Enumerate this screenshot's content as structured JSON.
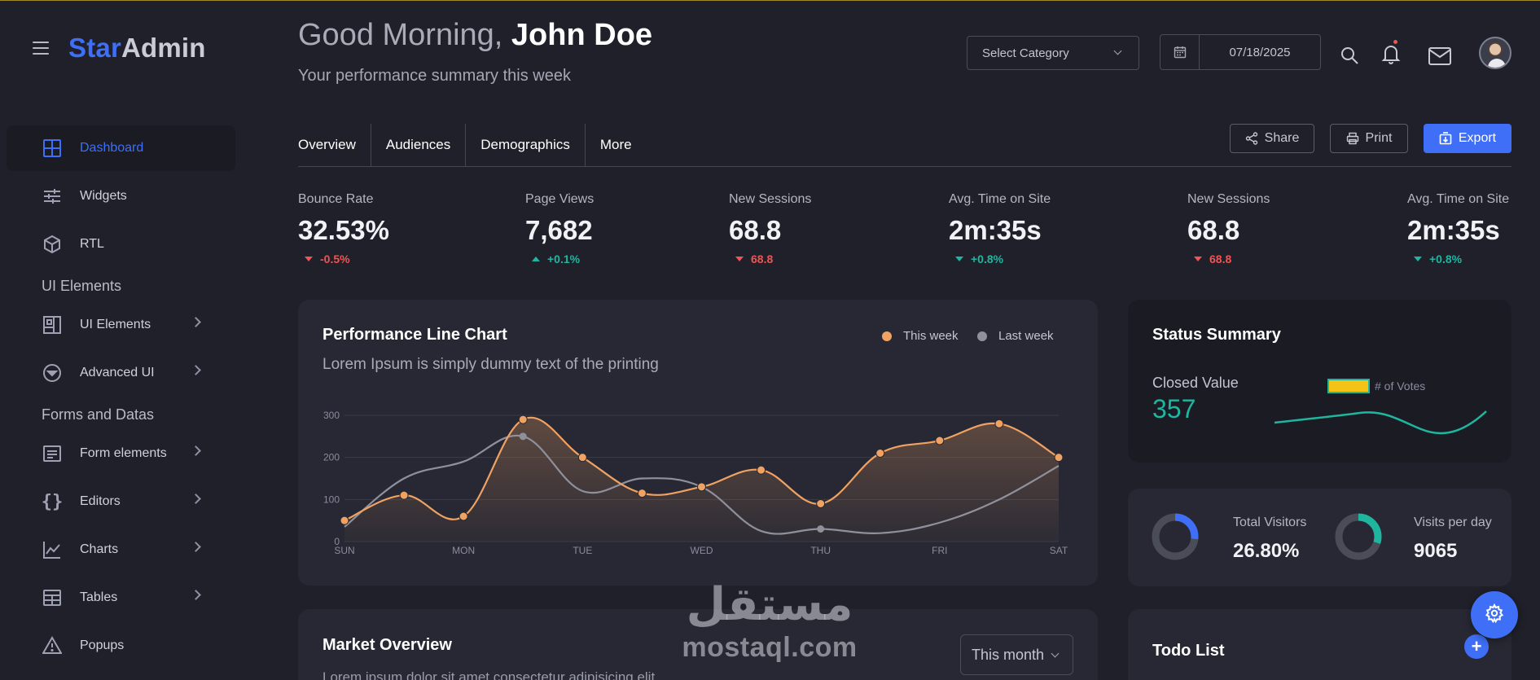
{
  "brand": {
    "part1": "Star",
    "part2": "Admin"
  },
  "sidebar": {
    "items": [
      {
        "label": "Dashboard",
        "icon": "grid-icon",
        "active": true
      },
      {
        "label": "Widgets",
        "icon": "sliders-icon"
      },
      {
        "label": "RTL",
        "icon": "cube-icon"
      },
      {
        "section": "UI Elements"
      },
      {
        "label": "UI Elements",
        "icon": "layout-icon",
        "chevron": true
      },
      {
        "label": "Advanced UI",
        "icon": "circle-chevron-icon",
        "chevron": true
      },
      {
        "section": "Forms and Datas"
      },
      {
        "label": "Form elements",
        "icon": "form-icon",
        "chevron": true
      },
      {
        "label": "Editors",
        "icon": "braces-icon",
        "chevron": true
      },
      {
        "label": "Charts",
        "icon": "chart-line-icon",
        "chevron": true
      },
      {
        "label": "Tables",
        "icon": "table-icon",
        "chevron": true
      },
      {
        "label": "Popups",
        "icon": "warning-icon"
      }
    ]
  },
  "header": {
    "greeting_prefix": "Good Morning, ",
    "user_name": "John Doe",
    "subtitle": "Your performance summary this week",
    "category_placeholder": "Select Category",
    "date": "07/18/2025"
  },
  "tabs": [
    "Overview",
    "Audiences",
    "Demographics",
    "More"
  ],
  "actions": {
    "share": "Share",
    "print": "Print",
    "export": "Export"
  },
  "kpis": [
    {
      "label": "Bounce Rate",
      "value": "32.53%",
      "delta": "-0.5%",
      "trend": "down",
      "color": "#f05454"
    },
    {
      "label": "Page Views",
      "value": "7,682",
      "delta": "+0.1%",
      "trend": "up",
      "color": "#1fb6a0"
    },
    {
      "label": "New Sessions",
      "value": "68.8",
      "delta": "68.8",
      "trend": "down",
      "color": "#f05454"
    },
    {
      "label": "Avg. Time on Site",
      "value": "2m:35s",
      "delta": "+0.8%",
      "trend": "down-green",
      "color": "#1fb6a0"
    },
    {
      "label": "New Sessions",
      "value": "68.8",
      "delta": "68.8",
      "trend": "down",
      "color": "#f05454"
    },
    {
      "label": "Avg. Time on Site",
      "value": "2m:35s",
      "delta": "+0.8%",
      "trend": "down-green",
      "color": "#1fb6a0"
    }
  ],
  "performance": {
    "title": "Performance Line Chart",
    "subtitle": "Lorem Ipsum is simply dummy text of the printing",
    "legend_this": "This week",
    "legend_last": "Last week",
    "color_this": "#f0a262",
    "color_last": "#8e909c"
  },
  "chart_data": {
    "type": "line",
    "categories": [
      "SUN",
      "MON",
      "TUE",
      "WED",
      "THU",
      "FRI",
      "SAT"
    ],
    "ylim": [
      0,
      300
    ],
    "yticks": [
      0,
      100,
      200,
      300
    ],
    "series": [
      {
        "name": "This week",
        "x": [
          0,
          0.5,
          1,
          1.5,
          2,
          2.5,
          3,
          3.5,
          4,
          4.5,
          5,
          5.5,
          6
        ],
        "values": [
          50,
          110,
          60,
          290,
          200,
          115,
          130,
          170,
          90,
          210,
          240,
          280,
          200
        ]
      },
      {
        "name": "Last week",
        "x": [
          0,
          0.5,
          1,
          1.5,
          2,
          2.5,
          3,
          3.5,
          4,
          4.5,
          5,
          5.5,
          6
        ],
        "values": [
          35,
          150,
          190,
          250,
          120,
          150,
          130,
          25,
          30,
          20,
          45,
          100,
          180
        ],
        "marked": [
          3,
          8
        ]
      }
    ]
  },
  "status_summary": {
    "title": "Status Summary",
    "closed_label": "Closed Value",
    "closed_value": "357",
    "votes_legend": "# of Votes"
  },
  "visitors": {
    "total_label": "Total Visitors",
    "total_value": "26.80%",
    "total_fraction": 0.268,
    "perday_label": "Visits per day",
    "perday_value": "9065",
    "perday_fraction": 0.3
  },
  "market": {
    "title": "Market Overview",
    "period": "This month",
    "text": "Lorem ipsum dolor sit amet consectetur adipisicing elit"
  },
  "todo": {
    "title": "Todo List"
  },
  "watermark": {
    "arabic": "مستقل",
    "latin": "mostaql.com"
  }
}
